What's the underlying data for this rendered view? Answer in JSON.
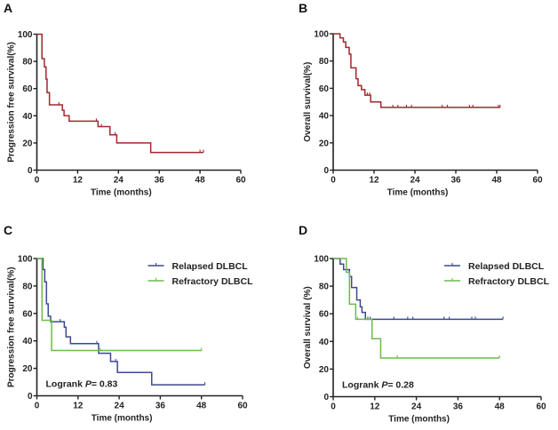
{
  "chart_data": [
    {
      "panel": "A",
      "type": "line",
      "step": true,
      "xlabel": "Time (months)",
      "ylabel": "Progression free survival(%)",
      "xlim": [
        0,
        60
      ],
      "ylim": [
        0,
        100
      ],
      "xticks": [
        0,
        12,
        24,
        36,
        48,
        60
      ],
      "yticks": [
        0,
        20,
        40,
        60,
        80,
        100
      ],
      "grid": false,
      "annotation": "",
      "series": [
        {
          "color": "#a0282e",
          "steps": [
            [
              0,
              100
            ],
            [
              1.5,
              82
            ],
            [
              2.2,
              76
            ],
            [
              2.7,
              67
            ],
            [
              3.0,
              57
            ],
            [
              3.7,
              48
            ],
            [
              7.5,
              44
            ],
            [
              8,
              40
            ],
            [
              9.5,
              36
            ],
            [
              18,
              32
            ],
            [
              21.5,
              26
            ],
            [
              23.5,
              20
            ],
            [
              33.5,
              13
            ]
          ],
          "end": 49,
          "censored": [
            6.5,
            17.5,
            19,
            23,
            48,
            49
          ]
        }
      ]
    },
    {
      "panel": "B",
      "type": "line",
      "step": true,
      "xlabel": "Time (months)",
      "ylabel": "Overall survival(%)",
      "xlim": [
        0,
        60
      ],
      "ylim": [
        0,
        100
      ],
      "xticks": [
        0,
        12,
        24,
        36,
        48,
        60
      ],
      "yticks": [
        0,
        20,
        40,
        60,
        80,
        100
      ],
      "grid": false,
      "annotation": "",
      "series": [
        {
          "color": "#a0282e",
          "steps": [
            [
              0,
              100
            ],
            [
              2,
              97
            ],
            [
              3,
              94
            ],
            [
              3.7,
              90
            ],
            [
              4.7,
              85
            ],
            [
              5.2,
              75
            ],
            [
              6.7,
              67
            ],
            [
              7.3,
              62
            ],
            [
              8.3,
              59
            ],
            [
              9.3,
              55
            ],
            [
              11,
              50
            ],
            [
              14,
              46
            ]
          ],
          "end": 49,
          "censored": [
            10,
            10.7,
            17.5,
            19,
            21.5,
            23,
            32,
            33.5,
            40,
            41,
            48.5,
            49
          ]
        }
      ]
    },
    {
      "panel": "C",
      "type": "line",
      "step": true,
      "xlabel": "Time (months)",
      "ylabel": "Progression free survival(%)",
      "xlim": [
        0,
        60
      ],
      "ylim": [
        0,
        100
      ],
      "xticks": [
        0,
        12,
        24,
        36,
        48,
        60
      ],
      "yticks": [
        0,
        20,
        40,
        60,
        80,
        100
      ],
      "grid": false,
      "legend_position": "top-right",
      "annotation_prefix": "Logrank ",
      "annotation_p": "P",
      "annotation_value": "= 0.83",
      "series": [
        {
          "name": "Relapsed DLBCL",
          "color": "#3b4a8e",
          "steps": [
            [
              0,
              100
            ],
            [
              1.8,
              92
            ],
            [
              2.3,
              83
            ],
            [
              2.8,
              67
            ],
            [
              3.3,
              58
            ],
            [
              4,
              54
            ],
            [
              8,
              50
            ],
            [
              8.5,
              43
            ],
            [
              9.8,
              38
            ],
            [
              18,
              31
            ],
            [
              21.5,
              25
            ],
            [
              23.5,
              17
            ],
            [
              33.5,
              8
            ]
          ],
          "end": 49,
          "censored": [
            6.8,
            17.5,
            23,
            49
          ]
        },
        {
          "name": "Refractory DLBCL",
          "color": "#6cbb4a",
          "steps": [
            [
              0,
              100
            ],
            [
              1.5,
              55
            ],
            [
              4.3,
              33
            ]
          ],
          "end": 48,
          "censored": [
            18.5,
            48
          ]
        }
      ]
    },
    {
      "panel": "D",
      "type": "line",
      "step": true,
      "xlabel": "Time (months)",
      "ylabel": "Overall survival (%)",
      "xlim": [
        0,
        60
      ],
      "ylim": [
        0,
        100
      ],
      "xticks": [
        0,
        12,
        24,
        36,
        48,
        60
      ],
      "yticks": [
        0,
        20,
        40,
        60,
        80,
        100
      ],
      "grid": false,
      "legend_position": "top-right",
      "annotation_prefix": "Logrank ",
      "annotation_p": "P",
      "annotation_value": "= 0.28",
      "series": [
        {
          "name": "Relapsed DLBCL",
          "color": "#3b4a8e",
          "steps": [
            [
              0,
              100
            ],
            [
              2,
              96
            ],
            [
              3,
              92
            ],
            [
              4.7,
              87
            ],
            [
              5.3,
              79
            ],
            [
              6.8,
              70
            ],
            [
              7.8,
              65
            ],
            [
              8.3,
              61
            ],
            [
              9.3,
              56
            ]
          ],
          "end": 49,
          "censored": [
            10,
            10.7,
            17.5,
            21.5,
            23,
            32,
            33.5,
            40,
            41,
            49
          ]
        },
        {
          "name": "Refractory DLBCL",
          "color": "#6cbb4a",
          "steps": [
            [
              0,
              100
            ],
            [
              3.8,
              90
            ],
            [
              4.7,
              67
            ],
            [
              6.5,
              56
            ],
            [
              11.2,
              42
            ],
            [
              13.7,
              28
            ]
          ],
          "end": 48,
          "censored": [
            7,
            18.5,
            48
          ]
        }
      ]
    }
  ]
}
